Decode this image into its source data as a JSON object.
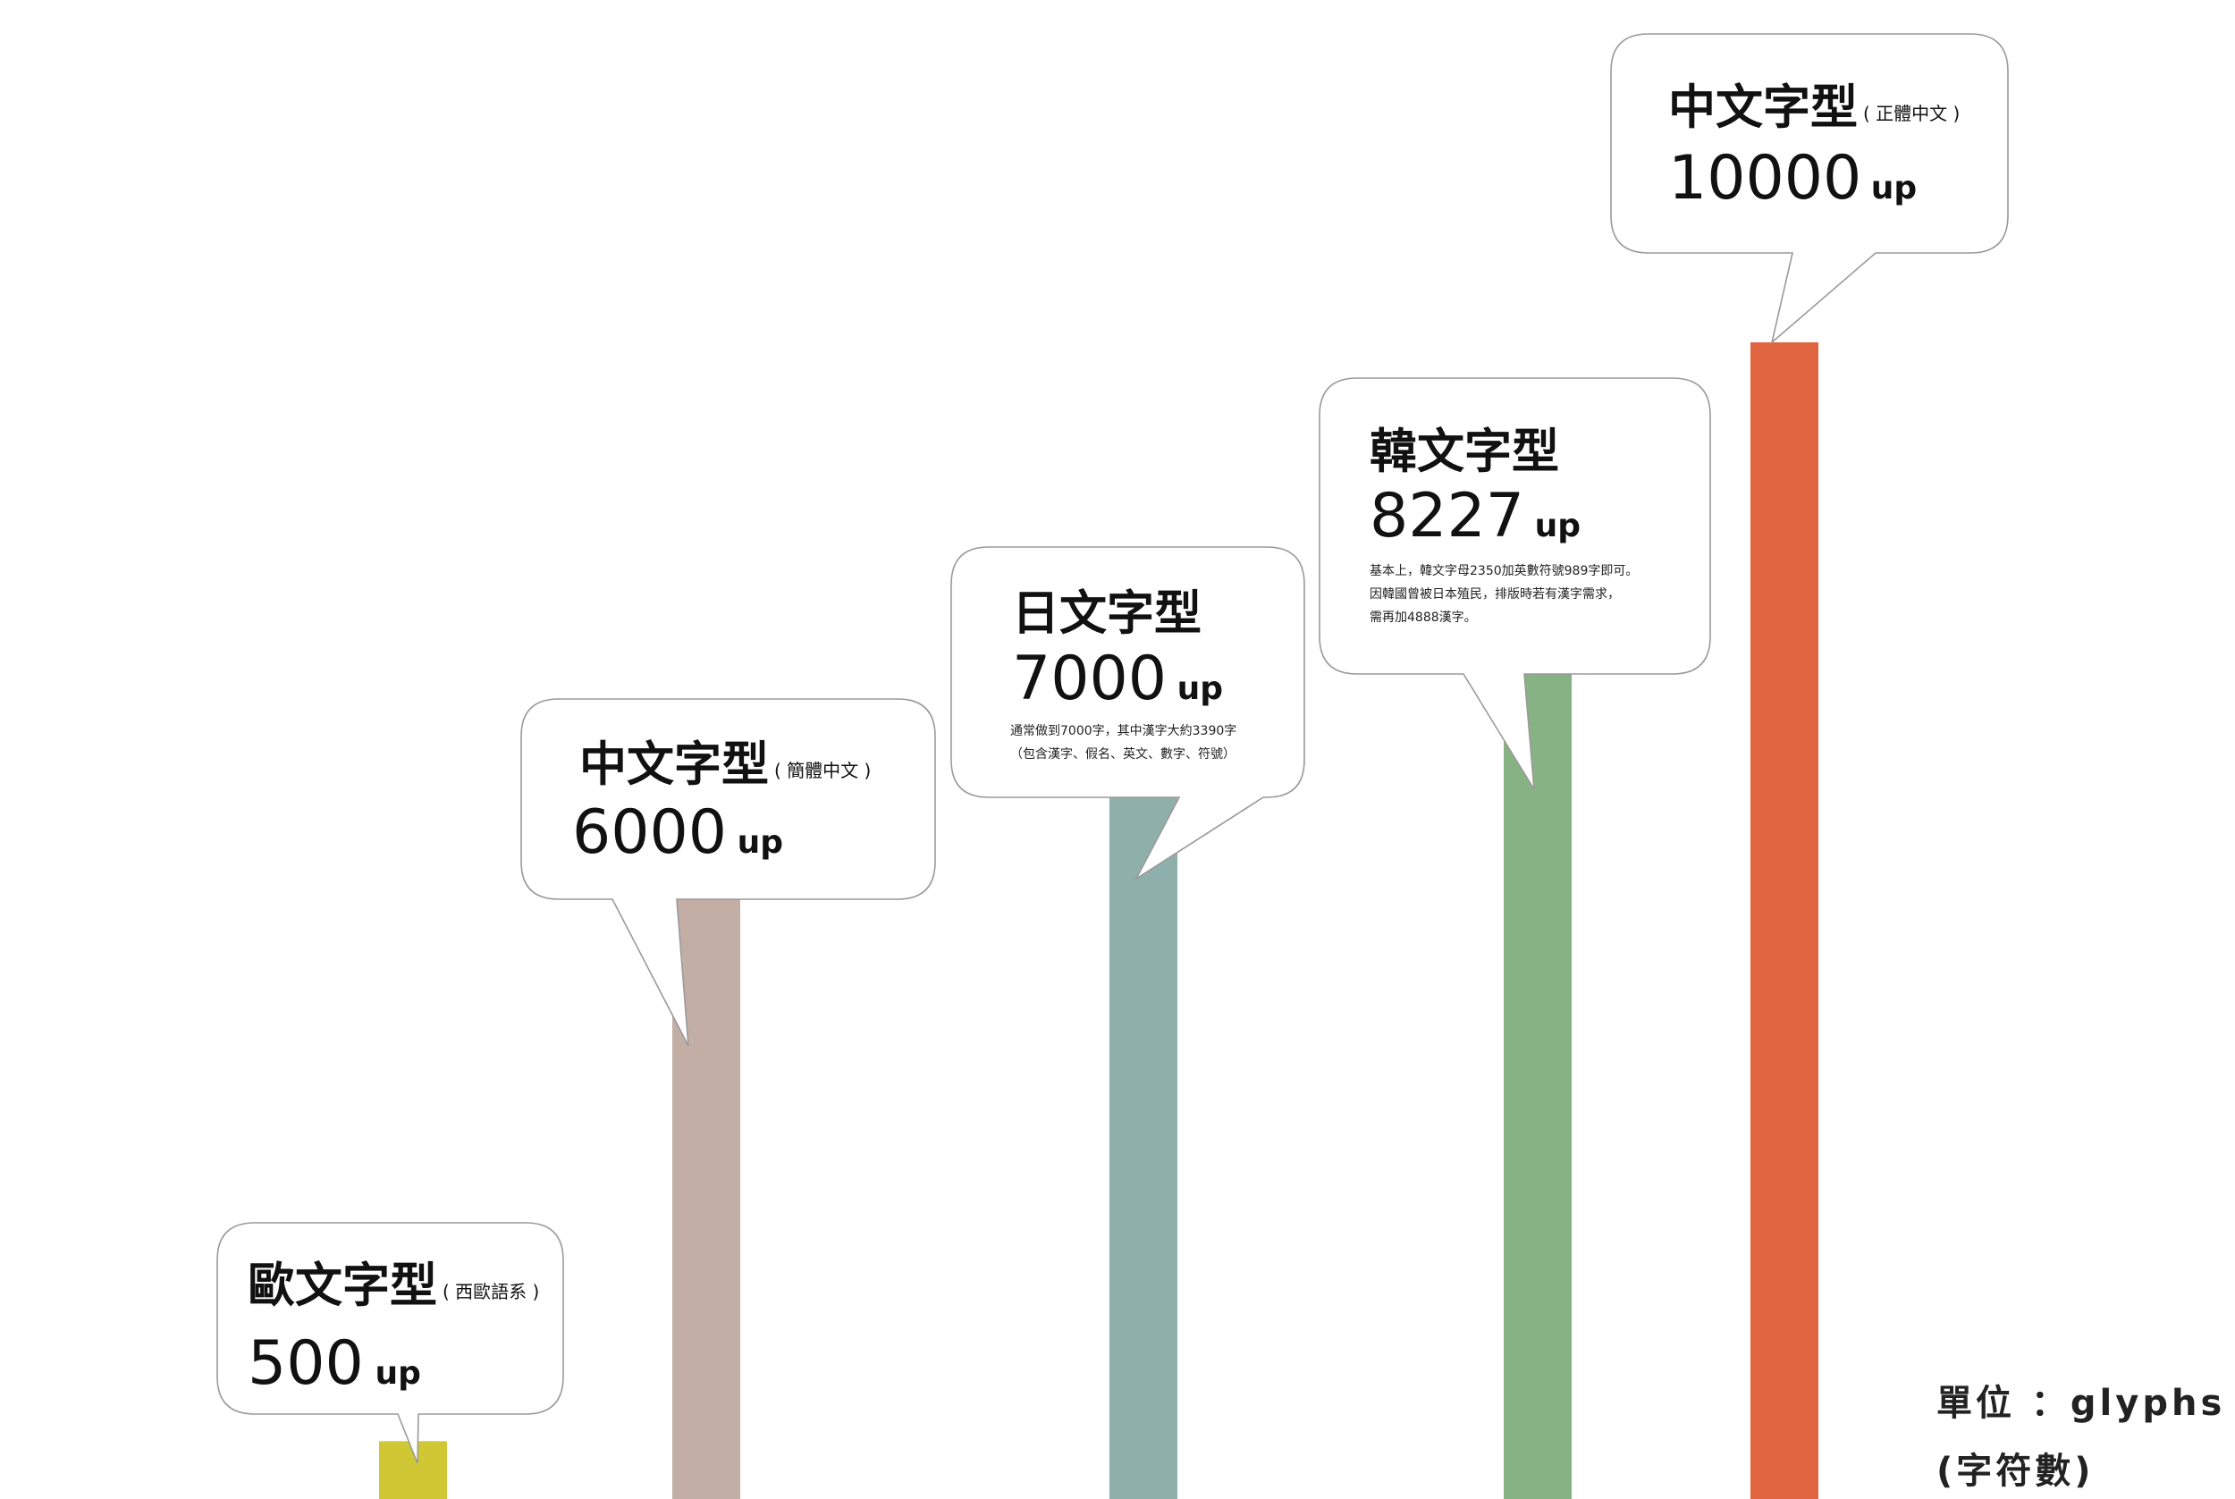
{
  "chart_data": {
    "type": "bar",
    "categories": [
      "歐文字型",
      "中文字型",
      "日文字型",
      "韓文字型",
      "中文字型"
    ],
    "values": [
      500,
      6000,
      7000,
      8227,
      10000
    ],
    "ylim": [
      0,
      10000
    ],
    "grid": false,
    "colors": [
      "#cfc733",
      "#c3aea6",
      "#8fb0aa",
      "#87b283",
      "#e0643f"
    ],
    "labels": [
      {
        "title": "歐文字型",
        "sub": "( 西歐語系 )",
        "value": "500",
        "unit": "up",
        "note": []
      },
      {
        "title": "中文字型",
        "sub": "( 簡體中文 )",
        "value": "6000",
        "unit": "up",
        "note": []
      },
      {
        "title": "日文字型",
        "sub": "",
        "value": "7000",
        "unit": "up",
        "note": [
          "通常做到7000字，其中漢字大約3390字",
          "（包含漢字、假名、英文、數字、符號）"
        ]
      },
      {
        "title": "韓文字型",
        "sub": "",
        "value": "8227",
        "unit": "up",
        "note": [
          "基本上，韓文字母2350加英數符號989字即可。",
          "因韓國曾被日本殖民，排版時若有漢字需求，",
          "需再加4888漢字。"
        ]
      },
      {
        "title": "中文字型",
        "sub": "( 正體中文 )",
        "value": "10000",
        "unit": "up",
        "note": []
      }
    ],
    "unit_label": [
      "單位 ：glyphs",
      "(字符數)"
    ]
  }
}
